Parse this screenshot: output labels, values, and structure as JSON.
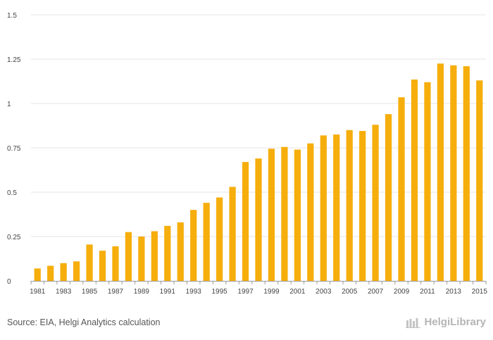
{
  "chart_data": {
    "type": "bar",
    "title": "",
    "xlabel": "",
    "ylabel": "",
    "ylim": [
      0,
      1.5
    ],
    "yticks": [
      {
        "value": 0,
        "label": "0"
      },
      {
        "value": 0.25,
        "label": "0.25"
      },
      {
        "value": 0.5,
        "label": "0.5"
      },
      {
        "value": 0.75,
        "label": "0.75"
      },
      {
        "value": 1,
        "label": "1"
      },
      {
        "value": 1.25,
        "label": "1.25"
      },
      {
        "value": 1.5,
        "label": "1.5"
      }
    ],
    "categories": [
      "1981",
      "1982",
      "1983",
      "1984",
      "1985",
      "1986",
      "1987",
      "1988",
      "1989",
      "1990",
      "1991",
      "1992",
      "1993",
      "1994",
      "1995",
      "1996",
      "1997",
      "1998",
      "1999",
      "2000",
      "2001",
      "2002",
      "2003",
      "2004",
      "2005",
      "2006",
      "2007",
      "2008",
      "2009",
      "2010",
      "2011",
      "2012",
      "2013",
      "2014",
      "2015"
    ],
    "xtick_labels": [
      "1981",
      "",
      "1983",
      "",
      "1985",
      "",
      "1987",
      "",
      "1989",
      "",
      "1991",
      "",
      "1993",
      "",
      "1995",
      "",
      "1997",
      "",
      "1999",
      "",
      "2001",
      "",
      "2003",
      "",
      "2005",
      "",
      "2007",
      "",
      "2009",
      "",
      "2011",
      "",
      "2013",
      "",
      "2015"
    ],
    "values": [
      0.07,
      0.085,
      0.1,
      0.11,
      0.205,
      0.17,
      0.195,
      0.275,
      0.25,
      0.28,
      0.31,
      0.33,
      0.4,
      0.44,
      0.47,
      0.53,
      0.67,
      0.69,
      0.745,
      0.755,
      0.74,
      0.775,
      0.82,
      0.825,
      0.85,
      0.845,
      0.88,
      0.94,
      1.035,
      1.135,
      1.12,
      1.225,
      1.215,
      1.21,
      1.13
    ],
    "bar_color": "#f6ae0c",
    "grid": true
  },
  "footer": {
    "source": "Source: EIA, Helgi Analytics calculation",
    "brand": "HelgiLibrary"
  }
}
